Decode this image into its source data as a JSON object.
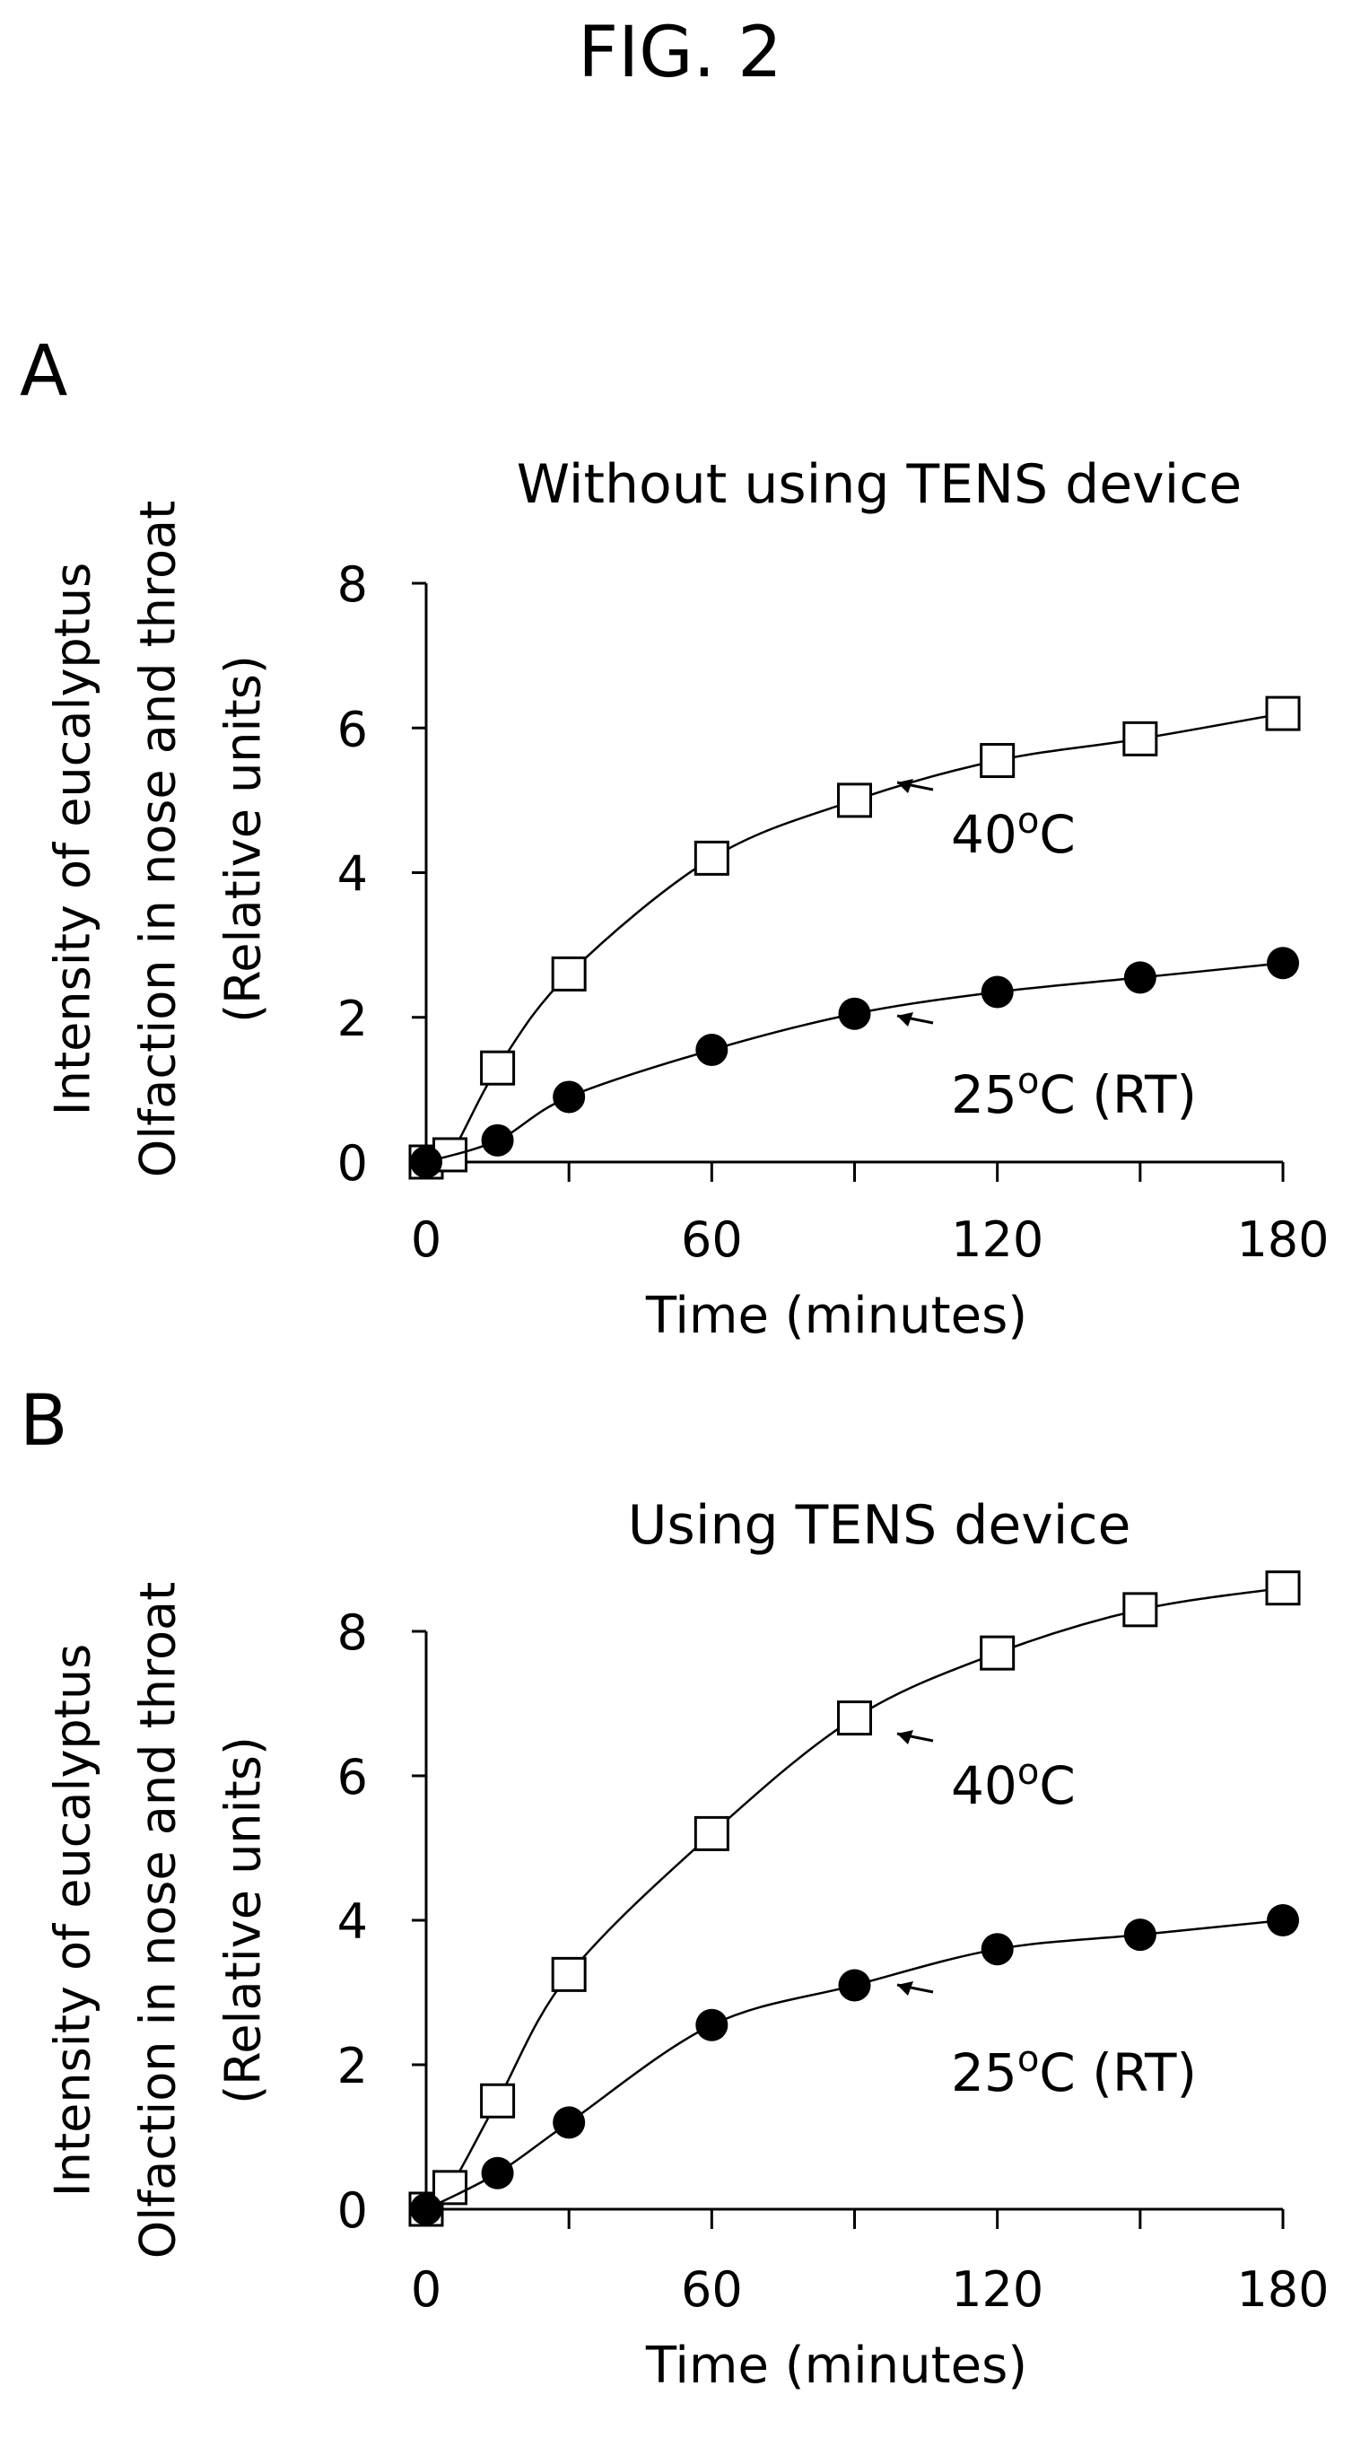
{
  "figure": {
    "title": "FIG. 2"
  },
  "chart_data": [
    {
      "panel": "A",
      "type": "line",
      "title": "Without using TENS device",
      "xlabel": "Time (minutes)",
      "ylabel": [
        "Intensity of eucalyptus",
        "Olfaction in nose and throat",
        "(Relative units)"
      ],
      "xlim": [
        0,
        180
      ],
      "ylim": [
        0,
        8
      ],
      "xticks": [
        0,
        60,
        120,
        180
      ],
      "yticks": [
        0,
        2,
        4,
        6,
        8
      ],
      "x": [
        0,
        5,
        15,
        30,
        60,
        90,
        120,
        150,
        180
      ],
      "series": [
        {
          "name": "40oC",
          "marker": "open-square",
          "values": [
            0,
            0.1,
            1.3,
            2.6,
            4.2,
            5.0,
            5.55,
            5.85,
            6.2
          ]
        },
        {
          "name": "25oC (RT)",
          "marker": "filled-circle",
          "values": [
            0,
            null,
            0.3,
            0.9,
            1.55,
            2.05,
            2.35,
            2.55,
            2.75
          ]
        }
      ]
    },
    {
      "panel": "B",
      "type": "line",
      "title": "Using TENS device",
      "xlabel": "Time (minutes)",
      "ylabel": [
        "Intensity of eucalyptus",
        "Olfaction in nose and throat",
        "(Relative units)"
      ],
      "xlim": [
        0,
        180
      ],
      "ylim": [
        0,
        8
      ],
      "xticks": [
        0,
        60,
        120,
        180
      ],
      "yticks": [
        0,
        2,
        4,
        6,
        8
      ],
      "x": [
        0,
        5,
        15,
        30,
        60,
        90,
        120,
        150,
        180
      ],
      "series": [
        {
          "name": "40oC",
          "marker": "open-square",
          "values": [
            0,
            0.3,
            1.5,
            3.25,
            5.2,
            6.8,
            7.7,
            8.3,
            8.6
          ]
        },
        {
          "name": "25oC (RT)",
          "marker": "filled-circle",
          "values": [
            0,
            null,
            0.5,
            1.2,
            2.55,
            3.1,
            3.6,
            3.8,
            4.0
          ]
        }
      ]
    }
  ]
}
